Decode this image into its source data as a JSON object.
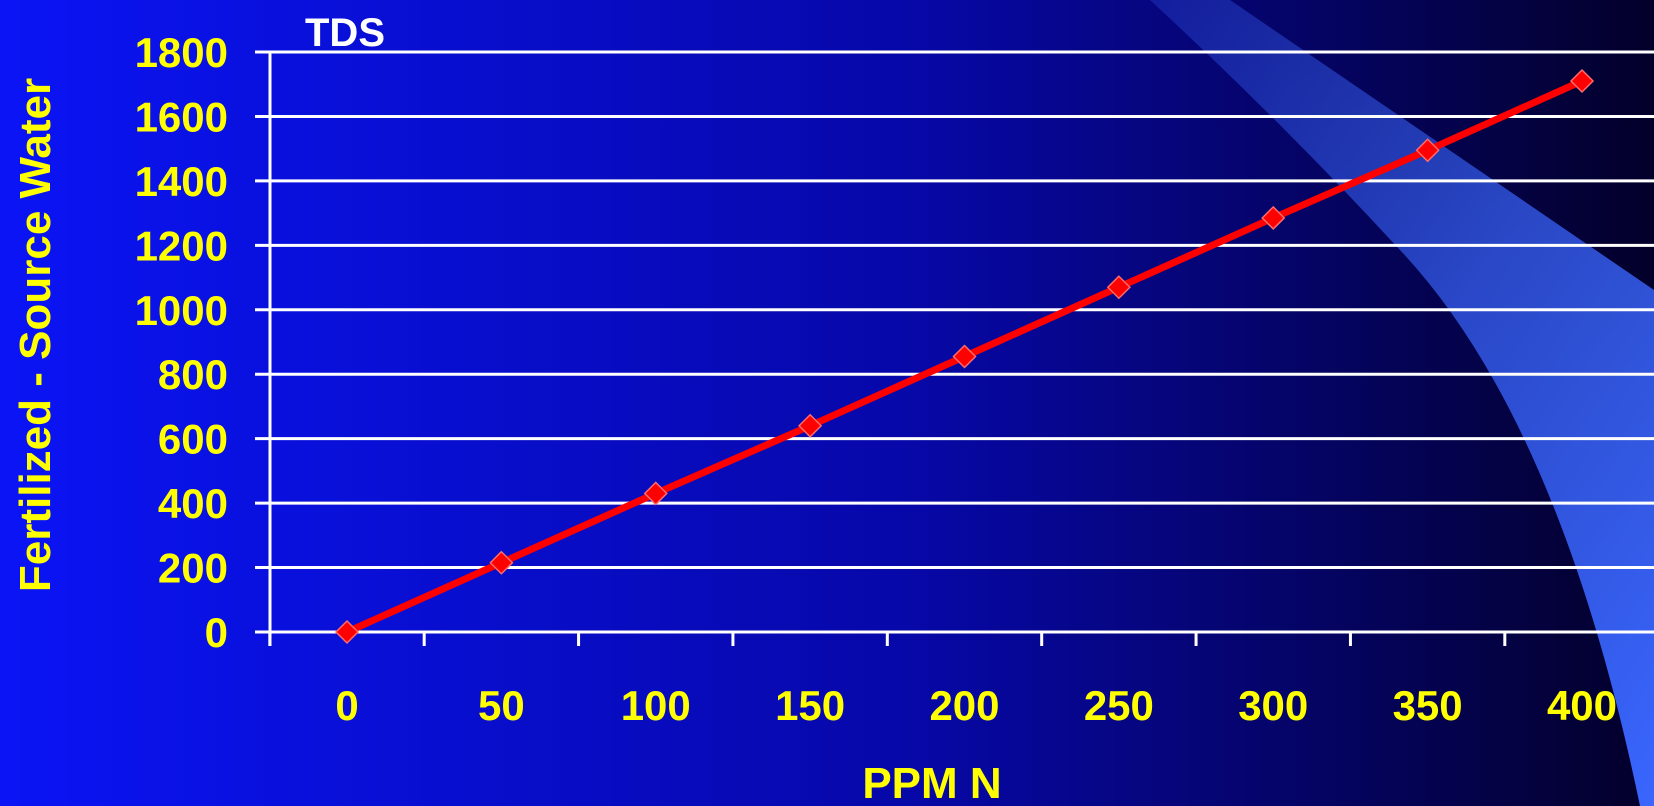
{
  "colors": {
    "background_left": "#0a14f5",
    "background_right": "#03002a",
    "swoosh": "#3a66ff",
    "grid": "#ffffff",
    "tick_text": "#ffff00",
    "title_text": "#ffffff",
    "series": "#ff0000"
  },
  "chart_data": {
    "type": "line",
    "title": "TDS",
    "xlabel": "PPM N",
    "ylabel": "Fertilized - Source Water",
    "x": [
      0,
      50,
      100,
      150,
      200,
      250,
      300,
      350,
      400
    ],
    "series": [
      {
        "values": [
          0,
          215,
          430,
          640,
          855,
          1070,
          1285,
          1495,
          1710
        ],
        "marker": "diamond"
      }
    ],
    "xlim": [
      -25,
      400
    ],
    "ylim": [
      0,
      1800
    ],
    "xticks": [
      "0",
      "50",
      "100",
      "150",
      "200",
      "250",
      "300",
      "350",
      "400"
    ],
    "yticks": [
      "0",
      "200",
      "400",
      "600",
      "800",
      "1000",
      "1200",
      "1400",
      "1600",
      "1800"
    ],
    "grid": "horizontal"
  }
}
